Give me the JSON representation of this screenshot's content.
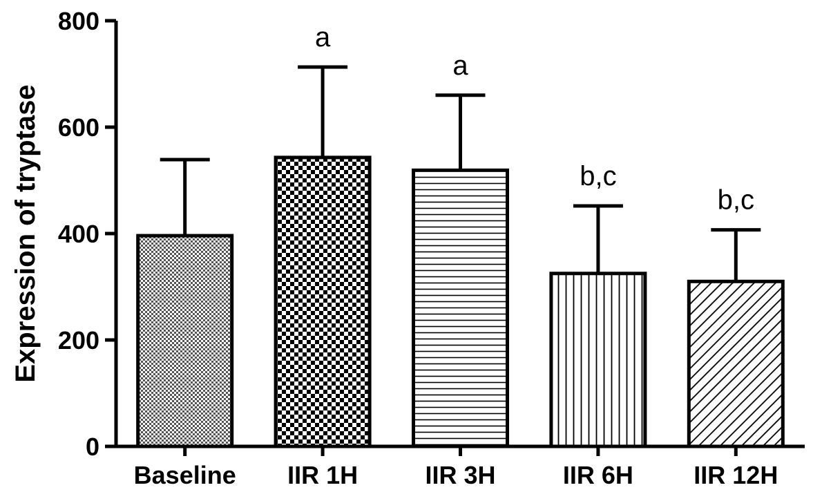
{
  "chart_data": {
    "type": "bar",
    "title": "",
    "xlabel": "",
    "ylabel": "Expression of tryptase",
    "ylim": [
      0,
      800
    ],
    "yticks": [
      0,
      200,
      400,
      600,
      800
    ],
    "categories": [
      "Baseline",
      "IIR 1H",
      "IIR 3H",
      "IIR 6H",
      "IIR 12H"
    ],
    "values": [
      396,
      543,
      519,
      325,
      310
    ],
    "error_upper": [
      539,
      713,
      660,
      452,
      407
    ],
    "annotations": [
      "",
      "a",
      "a",
      "b,c",
      "b,c"
    ],
    "patterns": [
      "fine-checker",
      "checker",
      "horizontal-lines",
      "vertical-lines",
      "diagonal-lines"
    ],
    "grid": false,
    "legend": "none",
    "bar_color": "#ffffff",
    "edge_color": "#000000"
  }
}
